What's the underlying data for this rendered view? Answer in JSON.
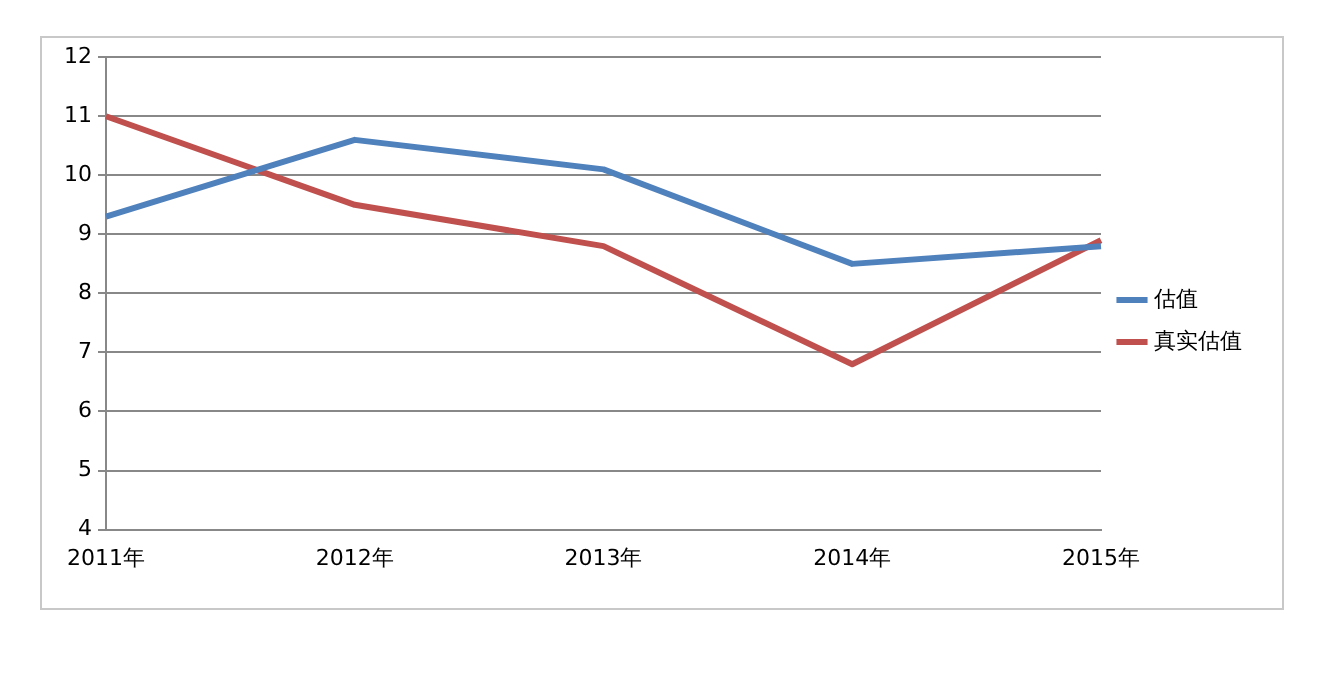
{
  "chart_data": {
    "type": "line",
    "categories": [
      "2011年",
      "2012年",
      "2013年",
      "2014年",
      "2015年"
    ],
    "series": [
      {
        "name": "估值",
        "color": "#4f81bd",
        "values": [
          9.3,
          10.6,
          10.1,
          8.5,
          8.8
        ]
      },
      {
        "name": "真实估值",
        "color": "#c0504d",
        "values": [
          11,
          9.5,
          8.8,
          6.8,
          8.9
        ]
      }
    ],
    "ylim": [
      4,
      12
    ],
    "yticks": [
      4,
      5,
      6,
      7,
      8,
      9,
      10,
      11,
      12
    ],
    "grid": "y",
    "legend": "right",
    "marker": "none",
    "line_style": "solid"
  }
}
